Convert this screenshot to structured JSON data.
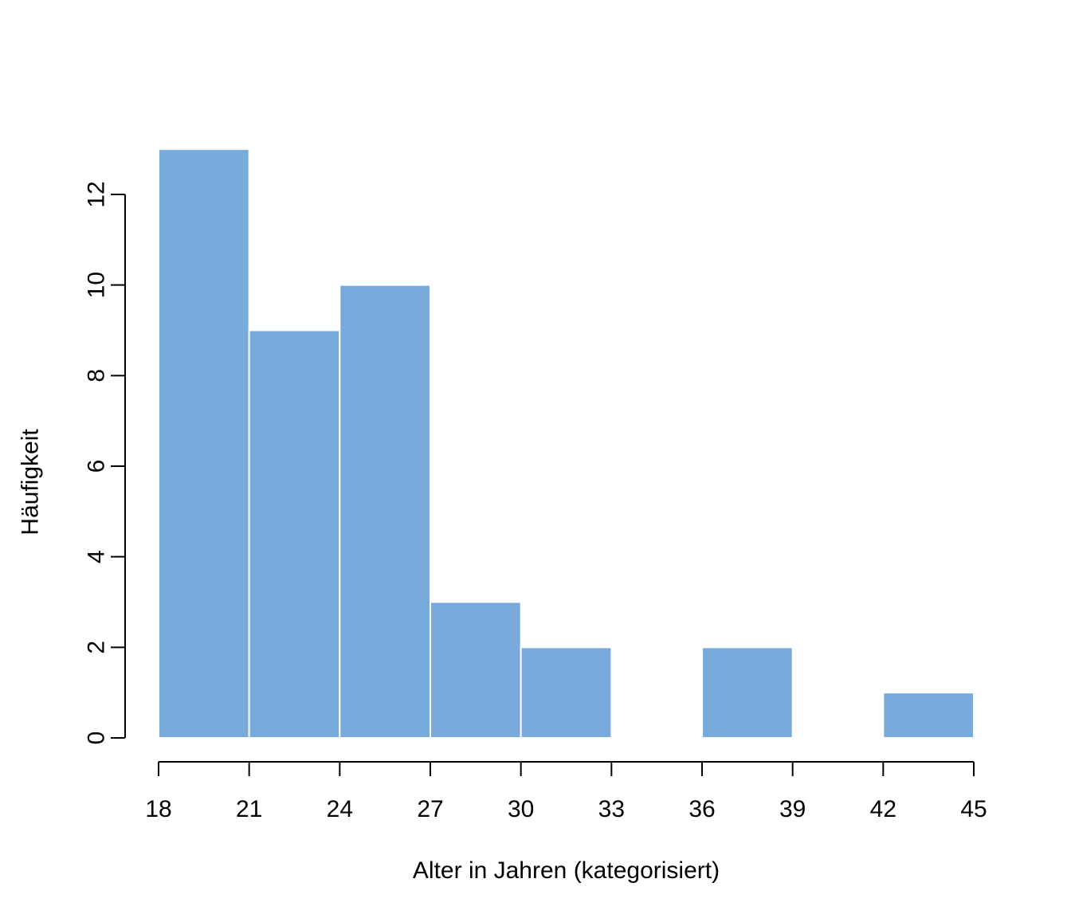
{
  "chart_data": {
    "type": "bar",
    "subtype": "histogram",
    "title": "",
    "xlabel": "Alter in Jahren (kategorisiert)",
    "ylabel": "Häufigkeit",
    "bins": [
      {
        "start": 18,
        "end": 21,
        "count": 13
      },
      {
        "start": 21,
        "end": 24,
        "count": 9
      },
      {
        "start": 24,
        "end": 27,
        "count": 10
      },
      {
        "start": 27,
        "end": 30,
        "count": 3
      },
      {
        "start": 30,
        "end": 33,
        "count": 2
      },
      {
        "start": 33,
        "end": 36,
        "count": 0
      },
      {
        "start": 36,
        "end": 39,
        "count": 2
      },
      {
        "start": 39,
        "end": 42,
        "count": 0
      },
      {
        "start": 42,
        "end": 45,
        "count": 1
      }
    ],
    "x_ticks": [
      18,
      21,
      24,
      27,
      30,
      33,
      36,
      39,
      42,
      45
    ],
    "y_ticks": [
      0,
      2,
      4,
      6,
      8,
      10,
      12
    ],
    "xlim": [
      18,
      45
    ],
    "ylim": [
      0,
      12
    ],
    "grid": false,
    "bar_color": "#78aadb",
    "bar_border_color": "#ffffff"
  }
}
